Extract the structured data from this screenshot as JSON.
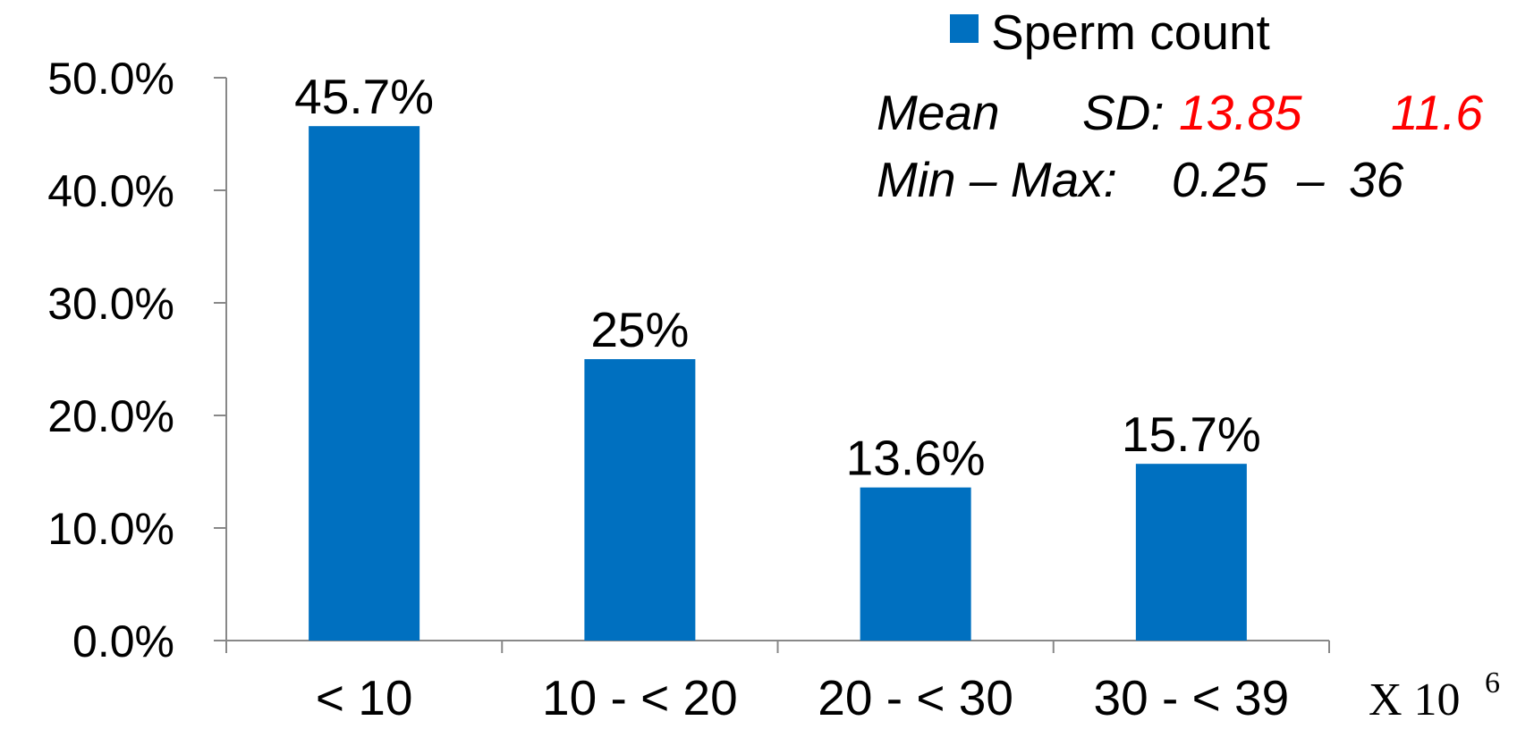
{
  "chart_data": {
    "type": "bar",
    "categories": [
      "< 10",
      "10 - < 20",
      "20 - < 30",
      "30 - < 39"
    ],
    "series": [
      {
        "name": "Sperm count",
        "values": [
          45.7,
          25,
          13.6,
          15.7
        ],
        "color": "#0070c0"
      }
    ],
    "data_labels": [
      "45.7%",
      "25%",
      "13.6%",
      "15.7%"
    ],
    "y_ticks": [
      "0.0%",
      "10.0%",
      "20.0%",
      "30.0%",
      "40.0%",
      "50.0%"
    ],
    "y_tick_values": [
      0,
      10,
      20,
      30,
      40,
      50
    ],
    "ylim": [
      0,
      50
    ],
    "x_unit": {
      "base": "X 10",
      "exponent": "6"
    },
    "legend_position": "top-right",
    "grid": false,
    "annotations": {
      "mean_label": "Mean",
      "sd_label": "SD:",
      "mean_value": "13.85",
      "sd_value": "11.6",
      "range_label": "Min – Max:",
      "min_value": "0.25",
      "range_dash": "–",
      "max_value": "36",
      "value_color": "#ff0000"
    }
  }
}
